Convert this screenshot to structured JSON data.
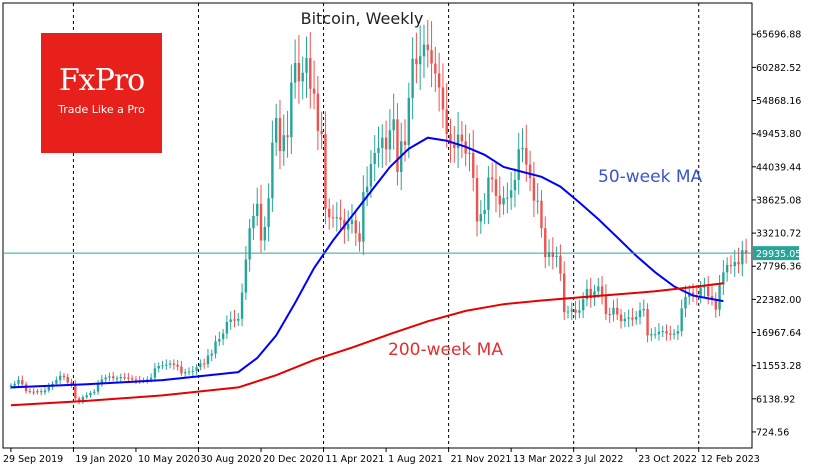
{
  "chart_data": {
    "type": "candlestick",
    "title": "Bitcoin, Weekly",
    "xlabel": "",
    "ylabel": "",
    "grid": false,
    "ylim": [
      -1900,
      70800
    ],
    "y_ticks": [
      724.56,
      6138.92,
      11553.28,
      16967.64,
      22382.0,
      27796.36,
      33210.72,
      38625.08,
      44039.44,
      49453.8,
      54868.16,
      60282.52,
      65696.88
    ],
    "x_ticks": [
      "29 Sep 2019",
      "19 Jan 2020",
      "10 May 2020",
      "30 Aug 2020",
      "20 Dec 2020",
      "11 Apr 2021",
      "1 Aug 2021",
      "21 Nov 2021",
      "13 Mar 2022",
      "3 Jul 2022",
      "23 Oct 2022",
      "12 Feb 2023"
    ],
    "current_price": 29935.05,
    "current_price_label": "29935.05",
    "price_series": [
      8300,
      8600,
      9200,
      8500,
      7400,
      7300,
      7200,
      7400,
      7200,
      7500,
      8100,
      8600,
      9200,
      9900,
      9700,
      8800,
      8500,
      6200,
      5600,
      6400,
      6700,
      7100,
      7300,
      8600,
      9300,
      9600,
      9800,
      9500,
      9500,
      9700,
      9600,
      9500,
      9300,
      9200,
      9100,
      9200,
      9300,
      9600,
      11100,
      11500,
      11600,
      11700,
      11900,
      11700,
      11400,
      10300,
      10500,
      10600,
      10700,
      11300,
      11900,
      11800,
      13200,
      13500,
      15500,
      15900,
      16800,
      18700,
      19100,
      18900,
      19200,
      23500,
      28900,
      34000,
      36000,
      38000,
      32000,
      34200,
      38900,
      48000,
      52000,
      46600,
      49200,
      48900,
      57800,
      61000,
      58000,
      59400,
      61800,
      56800,
      56000,
      49900,
      49400,
      37200,
      35800,
      35700,
      35800,
      35400,
      33800,
      34700,
      35300,
      33200,
      31800,
      39900,
      40800,
      44500,
      46300,
      47100,
      48800,
      46900,
      50000,
      51800,
      43200,
      48200,
      47600,
      55300,
      61700,
      60800,
      62100,
      64000,
      63100,
      60900,
      59300,
      57000,
      53400,
      49400,
      47700,
      47100,
      49300,
      48200,
      46200,
      46300,
      42200,
      35100,
      36300,
      37000,
      42300,
      42000,
      39300,
      37900,
      38900,
      39000,
      40200,
      41900,
      46900,
      47100,
      44400,
      42200,
      38500,
      38500,
      34000,
      29300,
      30100,
      29300,
      29500,
      26600,
      20300,
      20400,
      20700,
      20200,
      20600,
      22400,
      24100,
      22600,
      23700,
      24500,
      23000,
      20000,
      19900,
      21000,
      19900,
      18800,
      19200,
      19400,
      19100,
      19500,
      20600,
      20800,
      16500,
      16700,
      16700,
      17100,
      17200,
      16800,
      16600,
      16800,
      17200,
      20900,
      22800,
      23500,
      23000,
      22900,
      24300,
      24500,
      22900,
      22400,
      20700,
      24800,
      26800,
      28000,
      27800,
      28500,
      28100,
      30400,
      29935
    ],
    "series": [
      {
        "name": "50-week MA",
        "color": "#0000ff",
        "label": "50-week MA",
        "values": [
          [
            0,
            8000
          ],
          [
            20,
            8500
          ],
          [
            40,
            9200
          ],
          [
            60,
            10500
          ],
          [
            65,
            12800
          ],
          [
            70,
            16500
          ],
          [
            75,
            21800
          ],
          [
            80,
            27500
          ],
          [
            85,
            32000
          ],
          [
            90,
            36000
          ],
          [
            95,
            40000
          ],
          [
            100,
            44000
          ],
          [
            105,
            47000
          ],
          [
            110,
            48800
          ],
          [
            115,
            48300
          ],
          [
            120,
            47300
          ],
          [
            125,
            46000
          ],
          [
            130,
            44000
          ],
          [
            135,
            43200
          ],
          [
            140,
            42400
          ],
          [
            145,
            40800
          ],
          [
            150,
            38200
          ],
          [
            155,
            35500
          ],
          [
            160,
            32500
          ],
          [
            165,
            29500
          ],
          [
            170,
            26800
          ],
          [
            175,
            24500
          ],
          [
            180,
            23000
          ],
          [
            188,
            22100
          ]
        ]
      },
      {
        "name": "200-week MA",
        "color": "#e60000",
        "label": "200-week MA",
        "values": [
          [
            0,
            5100
          ],
          [
            20,
            5800
          ],
          [
            40,
            6700
          ],
          [
            60,
            8000
          ],
          [
            70,
            10000
          ],
          [
            80,
            12500
          ],
          [
            90,
            14500
          ],
          [
            100,
            16700
          ],
          [
            110,
            18800
          ],
          [
            120,
            20500
          ],
          [
            130,
            21600
          ],
          [
            140,
            22200
          ],
          [
            150,
            22700
          ],
          [
            160,
            23200
          ],
          [
            170,
            23700
          ],
          [
            180,
            24400
          ],
          [
            188,
            25000
          ]
        ]
      }
    ]
  },
  "logo": {
    "name": "FxPro",
    "tagline": "Trade Like a Pro",
    "color": "#e8201c"
  },
  "colors": {
    "bull": "#26a69a",
    "bear": "#ef5350",
    "price_line": "#26a69a"
  }
}
